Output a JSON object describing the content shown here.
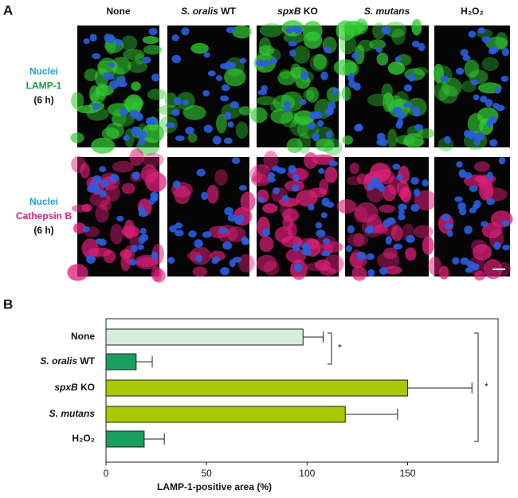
{
  "panel_a": {
    "label": "A",
    "columns": [
      "None",
      "S. oralis WT",
      "spxB KO",
      "S. mutans",
      "H₂O₂"
    ],
    "rows": [
      {
        "lines": [
          {
            "text": "Nuclei",
            "color": "#1ea0d8"
          },
          {
            "text": "LAMP-1",
            "color": "#1e9e48"
          },
          {
            "text": "(6 h)",
            "color": "#111111"
          }
        ],
        "stain": "#33cc33"
      },
      {
        "lines": [
          {
            "text": "Nuclei",
            "color": "#1ea0d8"
          },
          {
            "text": "Cathepsin B",
            "color": "#d61f7c"
          },
          {
            "text": "(6 h)",
            "color": "#111111"
          }
        ],
        "stain": "#e0207a"
      }
    ]
  },
  "panel_b_label": "B",
  "italic_terms": [
    "S. oralis",
    "spxB",
    "S. mutans"
  ],
  "chart_data": {
    "type": "hbar",
    "categories": [
      "None",
      "S. oralis WT",
      "spxB KO",
      "S. mutans",
      "H₂O₂"
    ],
    "values": [
      98,
      15,
      150,
      119,
      19
    ],
    "errors": [
      10,
      8,
      32,
      26,
      10
    ],
    "colors": [
      "#d5eed8",
      "#1a9e5e",
      "#a8c800",
      "#a8c800",
      "#1a9e5e"
    ],
    "xlabel": "LAMP-1-positive area (%)",
    "xlim": [
      0,
      195
    ],
    "xticks": [
      0,
      50,
      100,
      150
    ],
    "annotations": [
      {
        "text": "*",
        "from": 0,
        "to": 1
      },
      {
        "text": "*",
        "from": 0,
        "to": 4
      }
    ]
  }
}
